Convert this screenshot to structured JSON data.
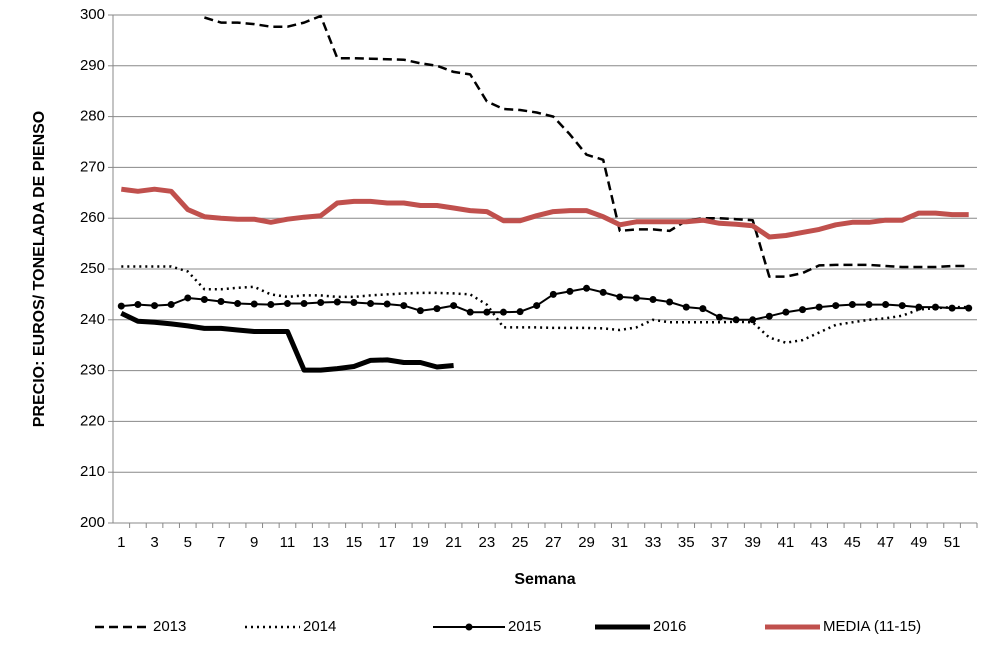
{
  "chart_data": {
    "type": "line",
    "y_label": "PRECIO: EUROS/ TONELADA DE PIENSO",
    "x_label": "Semana",
    "categories": [
      1,
      null,
      3,
      null,
      5,
      null,
      7,
      null,
      9,
      null,
      11,
      null,
      13,
      null,
      15,
      null,
      17,
      null,
      19,
      null,
      21,
      null,
      23,
      null,
      25,
      null,
      27,
      null,
      29,
      null,
      31,
      null,
      33,
      null,
      35,
      null,
      37,
      null,
      39,
      null,
      41,
      null,
      43,
      null,
      45,
      null,
      47,
      null,
      49,
      null,
      51,
      null
    ],
    "ylim": [
      200,
      300
    ],
    "yticks": [
      200,
      210,
      220,
      230,
      240,
      250,
      260,
      270,
      280,
      290,
      300
    ],
    "grid": true,
    "legend": "bottom",
    "series": [
      {
        "name": "2013",
        "color": "#000000",
        "line_style": "dashed",
        "values": [
          null,
          null,
          null,
          null,
          null,
          299.5,
          298.5,
          298.5,
          298.2,
          297.7,
          297.7,
          298.5,
          299.8,
          291.5,
          291.5,
          291.4,
          291.3,
          291.2,
          290.5,
          290,
          288.8,
          288.3,
          283,
          281.5,
          281.3,
          280.8,
          280,
          276.5,
          272.5,
          271.5,
          257.5,
          257.8,
          257.8,
          257.5,
          259.5,
          260,
          260,
          259.8,
          259.6,
          248.5,
          248.5,
          249.2,
          250.7,
          250.8,
          250.8,
          250.8,
          250.6,
          250.4,
          250.4,
          250.4,
          250.6,
          250.6
        ]
      },
      {
        "name": "2014",
        "color": "#000000",
        "line_style": "dotted",
        "values": [
          250.5,
          250.5,
          250.5,
          250.5,
          249.5,
          246,
          246,
          246.3,
          246.5,
          245,
          244.5,
          244.8,
          244.8,
          244.5,
          244.5,
          244.8,
          245,
          245.2,
          245.3,
          245.3,
          245.2,
          245,
          243,
          238.5,
          238.5,
          238.5,
          238.4,
          238.4,
          238.4,
          238.3,
          238,
          238.5,
          240,
          239.5,
          239.5,
          239.5,
          239.5,
          239.6,
          239.5,
          236.5,
          235.5,
          236,
          237.5,
          239,
          239.5,
          240,
          240.3,
          240.8,
          242,
          242.3,
          242.5,
          242.5
        ]
      },
      {
        "name": "2015",
        "color": "#000000",
        "line_style": "marker",
        "values": [
          242.7,
          243,
          242.8,
          243,
          244.3,
          244,
          243.6,
          243.2,
          243.1,
          243,
          243.2,
          243.2,
          243.4,
          243.5,
          243.4,
          243.2,
          243.1,
          242.8,
          241.8,
          242.2,
          242.8,
          241.5,
          241.5,
          241.5,
          241.6,
          242.8,
          245,
          245.6,
          246.2,
          245.4,
          244.5,
          244.3,
          244,
          243.5,
          242.5,
          242.2,
          240.5,
          240,
          240,
          240.7,
          241.5,
          242,
          242.5,
          242.8,
          243,
          243,
          243,
          242.8,
          242.5,
          242.5,
          242.3,
          242.3
        ]
      },
      {
        "name": "2016",
        "color": "#000000",
        "line_style": "thick",
        "values": [
          241.3,
          239.7,
          239.5,
          239.2,
          238.8,
          238.3,
          238.3,
          238,
          237.7,
          237.7,
          237.7,
          230.1,
          230.1,
          230.4,
          230.8,
          232,
          232.1,
          231.6,
          231.6,
          230.7,
          231,
          null,
          null,
          null,
          null,
          null,
          null,
          null,
          null,
          null,
          null,
          null,
          null,
          null,
          null,
          null,
          null,
          null,
          null,
          null,
          null,
          null,
          null,
          null,
          null,
          null,
          null,
          null,
          null,
          null,
          null,
          null
        ]
      },
      {
        "name": "MEDIA (11-15)",
        "color": "#c0504d",
        "line_style": "thick",
        "values": [
          265.7,
          265.3,
          265.7,
          265.3,
          261.7,
          260.3,
          260,
          259.8,
          259.8,
          259.2,
          259.8,
          260.2,
          260.5,
          263,
          263.3,
          263.3,
          263,
          263,
          262.5,
          262.5,
          262,
          261.5,
          261.3,
          259.5,
          259.5,
          260.5,
          261.3,
          261.5,
          261.5,
          260.3,
          258.7,
          259.3,
          259.3,
          259.3,
          259.3,
          259.6,
          259,
          258.8,
          258.5,
          256.3,
          256.6,
          257.2,
          257.8,
          258.7,
          259.2,
          259.2,
          259.6,
          259.6,
          261,
          261,
          260.7,
          260.7
        ]
      }
    ]
  }
}
